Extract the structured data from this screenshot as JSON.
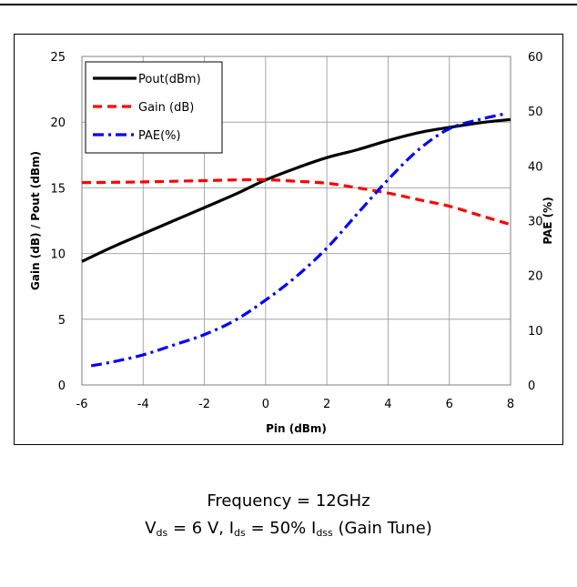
{
  "chart_data": {
    "type": "line",
    "title": "",
    "xlabel": "Pin (dBm)",
    "ylabel_left": "Gain (dB) / Pout (dBm)",
    "ylabel_right": "PAE (%)",
    "xlim": [
      -6,
      8
    ],
    "ylim_left": [
      0,
      25
    ],
    "ylim_right": [
      0,
      60
    ],
    "xticks": [
      "-6",
      "-4",
      "-2",
      "0",
      "2",
      "4",
      "6",
      "8"
    ],
    "yticks_left": [
      "0",
      "5",
      "10",
      "15",
      "20",
      "25"
    ],
    "yticks_right": [
      "0",
      "10",
      "20",
      "30",
      "40",
      "50",
      "60"
    ],
    "grid": true,
    "legend_position": "top-left",
    "series": [
      {
        "name": "Pout(dBm)",
        "axis": "left",
        "color": "#000000",
        "style": "solid",
        "x": [
          -6,
          -5,
          -4,
          -3,
          -2,
          -1,
          0,
          1,
          2,
          3,
          4,
          5,
          6,
          7,
          8
        ],
        "y": [
          9.4,
          10.5,
          11.5,
          12.5,
          13.5,
          14.5,
          15.6,
          16.5,
          17.3,
          17.9,
          18.6,
          19.2,
          19.6,
          19.95,
          20.2
        ]
      },
      {
        "name": "Gain (dB)",
        "axis": "left",
        "color": "#ff0000",
        "style": "dashed",
        "x": [
          -6,
          -5,
          -4,
          -3,
          -2,
          -1,
          0,
          1,
          2,
          3,
          4,
          5,
          6,
          7,
          8
        ],
        "y": [
          15.4,
          15.42,
          15.45,
          15.5,
          15.55,
          15.6,
          15.62,
          15.5,
          15.35,
          15.0,
          14.6,
          14.1,
          13.6,
          12.9,
          12.2
        ]
      },
      {
        "name": "PAE(%)",
        "axis": "right",
        "color": "#0000ff",
        "style": "dash-dot",
        "x": [
          -5.7,
          -5,
          -4,
          -3,
          -2,
          -1,
          0,
          1,
          2,
          3,
          4,
          5,
          6,
          7,
          7.8
        ],
        "y": [
          3.5,
          4.2,
          5.5,
          7.3,
          9.2,
          11.8,
          15.5,
          19.8,
          25.0,
          31.3,
          37.5,
          43.0,
          46.8,
          48.5,
          49.5
        ]
      }
    ]
  },
  "caption": {
    "line1": "Frequency = 12GHz",
    "v": "V",
    "v_sub": "ds",
    "v_rest": " = 6 V, I",
    "i_sub": "ds",
    "i_rest": " = 50% I",
    "idss_sub": "dss",
    "tail": " (Gain Tune)"
  }
}
